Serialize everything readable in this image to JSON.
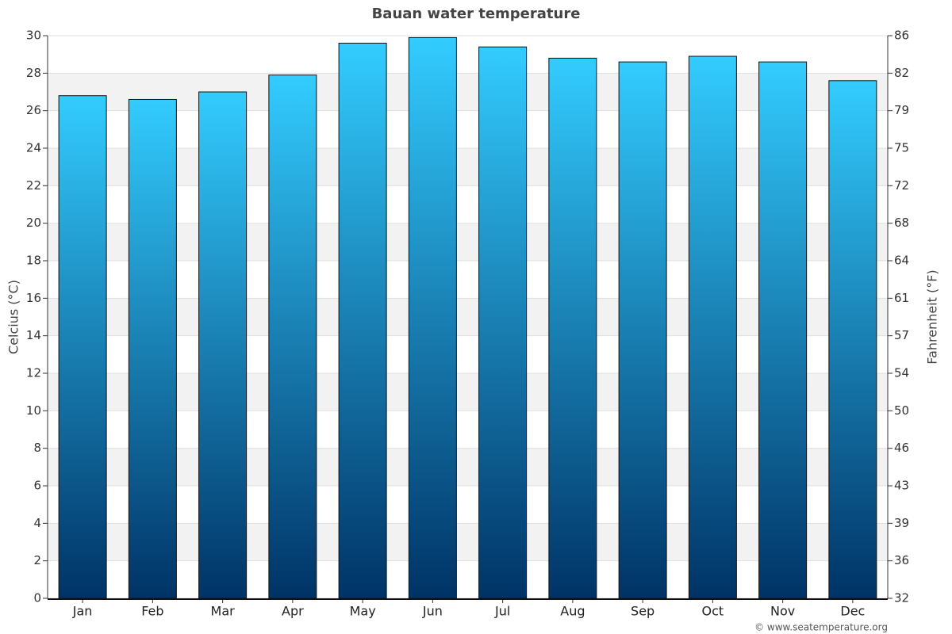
{
  "chart_data": {
    "type": "bar",
    "title": "Bauan water temperature",
    "y_label": "Celcius (°C)",
    "y2_label": "Fahrenheit (°F)",
    "credit": "© www.seatemperature.org",
    "categories": [
      "Jan",
      "Feb",
      "Mar",
      "Apr",
      "May",
      "Jun",
      "Jul",
      "Aug",
      "Sep",
      "Oct",
      "Nov",
      "Dec"
    ],
    "values": [
      26.8,
      26.6,
      27.0,
      27.9,
      29.6,
      29.9,
      29.4,
      28.8,
      28.6,
      28.9,
      28.6,
      27.6
    ],
    "color_top": "#33ccff",
    "color_bottom": "#003366",
    "ylim": [
      0,
      30
    ],
    "yticks": [
      0,
      2,
      4,
      6,
      8,
      10,
      12,
      14,
      16,
      18,
      20,
      22,
      24,
      26,
      28,
      30
    ],
    "y2lim": [
      32,
      86
    ],
    "y2ticks": [
      32,
      {
        "value": 35.6,
        "label": "36"
      },
      {
        "value": 39.2,
        "label": "39"
      },
      {
        "value": 42.8,
        "label": "43"
      },
      {
        "value": 46.4,
        "label": "46"
      },
      50,
      {
        "value": 53.6,
        "label": "54"
      },
      {
        "value": 57.2,
        "label": "57"
      },
      {
        "value": 60.8,
        "label": "61"
      },
      {
        "value": 64.4,
        "label": "64"
      },
      68,
      {
        "value": 71.6,
        "label": "72"
      },
      {
        "value": 75.2,
        "label": "75"
      },
      {
        "value": 78.8,
        "label": "79"
      },
      {
        "value": 82.4,
        "label": "82"
      },
      86
    ],
    "grid": true
  }
}
